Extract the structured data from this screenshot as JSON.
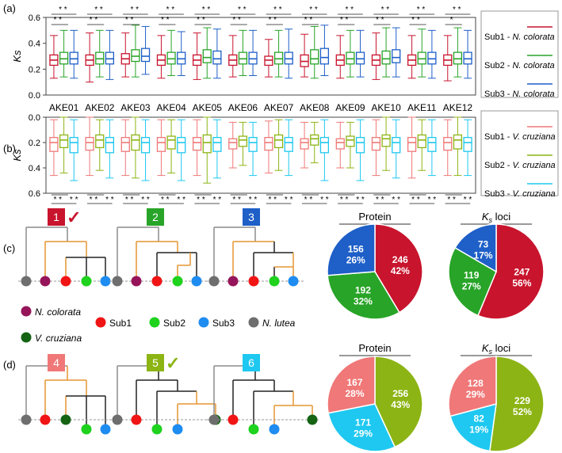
{
  "panel_labels": {
    "a": "(a)",
    "b": "(b)",
    "c": "(c)",
    "d": "(d)"
  },
  "colors": {
    "sub1_nc": "#c8142d",
    "sub2_nc": "#28a428",
    "sub3_nc": "#1e5fc8",
    "sub1_vc": "#f07878",
    "sub2_vc": "#8cb414",
    "sub3_vc": "#1ec8f0",
    "n_colorata": "#96145a",
    "v_cruziana": "#146414",
    "sub1": "#f01414",
    "sub2": "#1ed21e",
    "sub3": "#1e8cf0",
    "n_lutea": "#6e6e6e",
    "tree_orange": "#e69632",
    "tree_gray": "#8c8c8c",
    "tree_black": "#222222"
  },
  "chart_data": [
    {
      "type": "box",
      "panel": "(a)",
      "ylabel": "Ks",
      "ylim": [
        0,
        0.6
      ],
      "yticks": [
        "0.6",
        "0.4",
        "0.2",
        "0.0"
      ],
      "categories": [
        "AKE01",
        "AKE02",
        "AKE03",
        "AKE04",
        "AKE05",
        "AKE06",
        "AKE07",
        "AKE08",
        "AKE09",
        "AKE10",
        "AKE11",
        "AKE12"
      ],
      "series": [
        {
          "name": "Sub1 - N. colorata",
          "boxes": [
            {
              "low": 0.13,
              "q1": 0.23,
              "med": 0.27,
              "q3": 0.31,
              "high": 0.46
            },
            {
              "low": 0.1,
              "q1": 0.23,
              "med": 0.27,
              "q3": 0.31,
              "high": 0.48
            },
            {
              "low": 0.14,
              "q1": 0.24,
              "med": 0.28,
              "q3": 0.32,
              "high": 0.48
            },
            {
              "low": 0.13,
              "q1": 0.23,
              "med": 0.27,
              "q3": 0.31,
              "high": 0.46
            },
            {
              "low": 0.12,
              "q1": 0.23,
              "med": 0.27,
              "q3": 0.31,
              "high": 0.48
            },
            {
              "low": 0.14,
              "q1": 0.23,
              "med": 0.27,
              "q3": 0.31,
              "high": 0.46
            },
            {
              "low": 0.14,
              "q1": 0.23,
              "med": 0.27,
              "q3": 0.3,
              "high": 0.43
            },
            {
              "low": 0.14,
              "q1": 0.22,
              "med": 0.26,
              "q3": 0.31,
              "high": 0.47
            },
            {
              "low": 0.13,
              "q1": 0.23,
              "med": 0.27,
              "q3": 0.31,
              "high": 0.46
            },
            {
              "low": 0.12,
              "q1": 0.23,
              "med": 0.27,
              "q3": 0.31,
              "high": 0.48
            },
            {
              "low": 0.13,
              "q1": 0.23,
              "med": 0.27,
              "q3": 0.31,
              "high": 0.46
            },
            {
              "low": 0.11,
              "q1": 0.23,
              "med": 0.27,
              "q3": 0.31,
              "high": 0.46
            }
          ]
        },
        {
          "name": "Sub2 - N. colorata",
          "boxes": [
            {
              "low": 0.14,
              "q1": 0.24,
              "med": 0.28,
              "q3": 0.33,
              "high": 0.5
            },
            {
              "low": 0.14,
              "q1": 0.24,
              "med": 0.28,
              "q3": 0.33,
              "high": 0.5
            },
            {
              "low": 0.14,
              "q1": 0.26,
              "med": 0.3,
              "q3": 0.35,
              "high": 0.54
            },
            {
              "low": 0.15,
              "q1": 0.24,
              "med": 0.28,
              "q3": 0.33,
              "high": 0.5
            },
            {
              "low": 0.13,
              "q1": 0.25,
              "med": 0.29,
              "q3": 0.35,
              "high": 0.52
            },
            {
              "low": 0.15,
              "q1": 0.24,
              "med": 0.28,
              "q3": 0.33,
              "high": 0.5
            },
            {
              "low": 0.14,
              "q1": 0.24,
              "med": 0.28,
              "q3": 0.33,
              "high": 0.5
            },
            {
              "low": 0.13,
              "q1": 0.24,
              "med": 0.28,
              "q3": 0.35,
              "high": 0.53
            },
            {
              "low": 0.14,
              "q1": 0.24,
              "med": 0.28,
              "q3": 0.33,
              "high": 0.5
            },
            {
              "low": 0.14,
              "q1": 0.24,
              "med": 0.28,
              "q3": 0.34,
              "high": 0.52
            },
            {
              "low": 0.14,
              "q1": 0.24,
              "med": 0.28,
              "q3": 0.33,
              "high": 0.51
            },
            {
              "low": 0.14,
              "q1": 0.24,
              "med": 0.28,
              "q3": 0.33,
              "high": 0.52
            }
          ]
        },
        {
          "name": "Sub3 - N. colorata",
          "boxes": [
            {
              "low": 0.13,
              "q1": 0.24,
              "med": 0.28,
              "q3": 0.33,
              "high": 0.5
            },
            {
              "low": 0.12,
              "q1": 0.24,
              "med": 0.28,
              "q3": 0.33,
              "high": 0.5
            },
            {
              "low": 0.16,
              "q1": 0.26,
              "med": 0.3,
              "q3": 0.36,
              "high": 0.53
            },
            {
              "low": 0.15,
              "q1": 0.24,
              "med": 0.28,
              "q3": 0.33,
              "high": 0.49
            },
            {
              "low": 0.13,
              "q1": 0.24,
              "med": 0.28,
              "q3": 0.34,
              "high": 0.51
            },
            {
              "low": 0.15,
              "q1": 0.24,
              "med": 0.28,
              "q3": 0.33,
              "high": 0.5
            },
            {
              "low": 0.13,
              "q1": 0.24,
              "med": 0.28,
              "q3": 0.33,
              "high": 0.51
            },
            {
              "low": 0.15,
              "q1": 0.24,
              "med": 0.29,
              "q3": 0.36,
              "high": 0.54
            },
            {
              "low": 0.14,
              "q1": 0.24,
              "med": 0.28,
              "q3": 0.33,
              "high": 0.5
            },
            {
              "low": 0.14,
              "q1": 0.25,
              "med": 0.29,
              "q3": 0.35,
              "high": 0.52
            },
            {
              "low": 0.13,
              "q1": 0.24,
              "med": 0.28,
              "q3": 0.33,
              "high": 0.5
            },
            {
              "low": 0.13,
              "q1": 0.24,
              "med": 0.28,
              "q3": 0.33,
              "high": 0.5
            }
          ]
        }
      ],
      "legend": [
        {
          "label": "Sub1 - ",
          "species": "N. colorata",
          "color": "#c8142d"
        },
        {
          "label": "Sub2 - ",
          "species": "N. colorata",
          "color": "#28a428"
        },
        {
          "label": "Sub3 - ",
          "species": "N. colorata",
          "color": "#1e5fc8"
        }
      ],
      "significance": [
        {
          "top": "* *",
          "bottom": "* *"
        },
        {
          "top": "* *",
          "bottom": "* *"
        },
        {
          "top": "* *",
          "bottom": "* *"
        },
        {
          "top": "* *",
          "bottom": "* *"
        },
        {
          "top": "* *",
          "bottom": "* *"
        },
        {
          "top": "* *",
          "bottom": "* *"
        },
        {
          "top": "* *",
          "bottom": "* *"
        },
        {
          "top": "* *",
          "bottom": "* *"
        },
        {
          "top": "* *",
          "bottom": "* *"
        },
        {
          "top": "* *",
          "bottom": "* *"
        },
        {
          "top": "* *",
          "bottom": "* *"
        },
        {
          "top": "* *",
          "bottom": "*"
        }
      ]
    },
    {
      "type": "box",
      "panel": "(b)",
      "ylabel": "Ks",
      "ylim": [
        0,
        0.6
      ],
      "inverted": true,
      "yticks": [
        "0.0",
        "0.2",
        "0.4",
        "0.6"
      ],
      "series": [
        {
          "name": "Sub1 - V. cruziana",
          "boxes": [
            {
              "low": 0.02,
              "q1": 0.16,
              "med": 0.2,
              "q3": 0.27,
              "high": 0.46
            },
            {
              "low": 0.0,
              "q1": 0.16,
              "med": 0.2,
              "q3": 0.26,
              "high": 0.46
            },
            {
              "low": 0.02,
              "q1": 0.16,
              "med": 0.2,
              "q3": 0.27,
              "high": 0.46
            },
            {
              "low": 0.02,
              "q1": 0.16,
              "med": 0.2,
              "q3": 0.27,
              "high": 0.46
            },
            {
              "low": 0.02,
              "q1": 0.16,
              "med": 0.2,
              "q3": 0.26,
              "high": 0.46
            },
            {
              "low": 0.04,
              "q1": 0.17,
              "med": 0.2,
              "q3": 0.25,
              "high": 0.4
            },
            {
              "low": 0.03,
              "q1": 0.16,
              "med": 0.2,
              "q3": 0.26,
              "high": 0.44
            },
            {
              "low": 0.04,
              "q1": 0.17,
              "med": 0.2,
              "q3": 0.25,
              "high": 0.4
            },
            {
              "low": 0.04,
              "q1": 0.17,
              "med": 0.2,
              "q3": 0.25,
              "high": 0.4
            },
            {
              "low": 0.02,
              "q1": 0.16,
              "med": 0.2,
              "q3": 0.26,
              "high": 0.46
            },
            {
              "low": 0.0,
              "q1": 0.16,
              "med": 0.2,
              "q3": 0.27,
              "high": 0.48
            },
            {
              "low": 0.02,
              "q1": 0.16,
              "med": 0.2,
              "q3": 0.26,
              "high": 0.46
            }
          ]
        },
        {
          "name": "Sub2 - V. cruziana",
          "boxes": [
            {
              "low": 0.0,
              "q1": 0.14,
              "med": 0.18,
              "q3": 0.24,
              "high": 0.44
            },
            {
              "low": 0.02,
              "q1": 0.14,
              "med": 0.18,
              "q3": 0.24,
              "high": 0.42
            },
            {
              "low": 0.0,
              "q1": 0.14,
              "med": 0.18,
              "q3": 0.26,
              "high": 0.48
            },
            {
              "low": 0.02,
              "q1": 0.15,
              "med": 0.18,
              "q3": 0.25,
              "high": 0.44
            },
            {
              "low": 0.0,
              "q1": 0.14,
              "med": 0.2,
              "q3": 0.28,
              "high": 0.52
            },
            {
              "low": 0.04,
              "q1": 0.15,
              "med": 0.18,
              "q3": 0.23,
              "high": 0.38
            },
            {
              "low": 0.02,
              "q1": 0.14,
              "med": 0.18,
              "q3": 0.24,
              "high": 0.42
            },
            {
              "low": 0.04,
              "q1": 0.14,
              "med": 0.17,
              "q3": 0.22,
              "high": 0.36
            },
            {
              "low": 0.04,
              "q1": 0.15,
              "med": 0.18,
              "q3": 0.23,
              "high": 0.4
            },
            {
              "low": 0.0,
              "q1": 0.14,
              "med": 0.17,
              "q3": 0.23,
              "high": 0.42
            },
            {
              "low": 0.02,
              "q1": 0.14,
              "med": 0.18,
              "q3": 0.24,
              "high": 0.42
            },
            {
              "low": 0.0,
              "q1": 0.14,
              "med": 0.18,
              "q3": 0.25,
              "high": 0.46
            }
          ]
        },
        {
          "name": "Sub3 - V. cruziana",
          "boxes": [
            {
              "low": 0.02,
              "q1": 0.16,
              "med": 0.2,
              "q3": 0.28,
              "high": 0.5
            },
            {
              "low": 0.02,
              "q1": 0.16,
              "med": 0.2,
              "q3": 0.28,
              "high": 0.48
            },
            {
              "low": 0.02,
              "q1": 0.16,
              "med": 0.2,
              "q3": 0.28,
              "high": 0.5
            },
            {
              "low": 0.02,
              "q1": 0.16,
              "med": 0.2,
              "q3": 0.28,
              "high": 0.5
            },
            {
              "low": 0.02,
              "q1": 0.16,
              "med": 0.2,
              "q3": 0.27,
              "high": 0.48
            },
            {
              "low": 0.04,
              "q1": 0.16,
              "med": 0.2,
              "q3": 0.27,
              "high": 0.46
            },
            {
              "low": 0.02,
              "q1": 0.16,
              "med": 0.2,
              "q3": 0.27,
              "high": 0.46
            },
            {
              "low": 0.02,
              "q1": 0.16,
              "med": 0.2,
              "q3": 0.28,
              "high": 0.5
            },
            {
              "low": 0.02,
              "q1": 0.16,
              "med": 0.2,
              "q3": 0.28,
              "high": 0.5
            },
            {
              "low": 0.02,
              "q1": 0.16,
              "med": 0.2,
              "q3": 0.28,
              "high": 0.48
            },
            {
              "low": 0.02,
              "q1": 0.16,
              "med": 0.2,
              "q3": 0.27,
              "high": 0.46
            },
            {
              "low": 0.02,
              "q1": 0.16,
              "med": 0.2,
              "q3": 0.27,
              "high": 0.46
            }
          ]
        }
      ],
      "legend": [
        {
          "label": "Sub1 - ",
          "species": "V. cruziana",
          "color": "#f07878"
        },
        {
          "label": "Sub2 - ",
          "species": "V. cruziana",
          "color": "#8cb414"
        },
        {
          "label": "Sub3 - ",
          "species": "V. cruziana",
          "color": "#1ec8f0"
        }
      ],
      "significance": [
        {
          "top": "* *",
          "bottom": "* *"
        },
        {
          "top": "* *",
          "bottom": "* *"
        },
        {
          "top": "* *",
          "bottom": "* *"
        },
        {
          "top": "* *",
          "bottom": "* *"
        },
        {
          "top": "* *",
          "bottom": "* *"
        },
        {
          "top": "* *",
          "bottom": "* *"
        },
        {
          "top": "* *",
          "bottom": "* *"
        },
        {
          "top": "* *",
          "bottom": "* *"
        },
        {
          "top": "* *",
          "bottom": "* *"
        },
        {
          "top": "* *",
          "bottom": "* *"
        },
        {
          "top": "* *",
          "bottom": "* *"
        },
        {
          "top": "* *",
          "bottom": "* *"
        }
      ]
    },
    {
      "type": "pie",
      "panel": "(c)",
      "title": "Protein",
      "slices": [
        {
          "value": 246,
          "pct": "42%",
          "color": "#c8142d"
        },
        {
          "value": 192,
          "pct": "32%",
          "color": "#28a428"
        },
        {
          "value": 156,
          "pct": "26%",
          "color": "#1e5fc8"
        }
      ]
    },
    {
      "type": "pie",
      "panel": "(c)",
      "title": "Ks loci",
      "title_sub": "s",
      "slices": [
        {
          "value": 247,
          "pct": "56%",
          "color": "#c8142d"
        },
        {
          "value": 119,
          "pct": "27%",
          "color": "#28a428"
        },
        {
          "value": 73,
          "pct": "17%",
          "color": "#1e5fc8"
        }
      ]
    },
    {
      "type": "pie",
      "panel": "(d)",
      "title": "Protein",
      "slices": [
        {
          "value": 256,
          "pct": "43%",
          "color": "#8cb414"
        },
        {
          "value": 171,
          "pct": "29%",
          "color": "#1ec8f0"
        },
        {
          "value": 167,
          "pct": "28%",
          "color": "#f07878"
        }
      ]
    },
    {
      "type": "pie",
      "panel": "(d)",
      "title": "Ks loci",
      "title_sub": "s",
      "slices": [
        {
          "value": 229,
          "pct": "52%",
          "color": "#8cb414"
        },
        {
          "value": 82,
          "pct": "19%",
          "color": "#1ec8f0"
        },
        {
          "value": 128,
          "pct": "29%",
          "color": "#f07878"
        }
      ]
    }
  ],
  "trees_c": [
    {
      "number": "1",
      "color": "#c8142d",
      "check": "✓"
    },
    {
      "number": "2",
      "color": "#28a428"
    },
    {
      "number": "3",
      "color": "#1e5fc8"
    }
  ],
  "trees_d": [
    {
      "number": "4",
      "color": "#f07878"
    },
    {
      "number": "5",
      "color": "#8cb414",
      "check": "✓"
    },
    {
      "number": "6",
      "color": "#1ec8f0"
    }
  ],
  "species_legend": [
    {
      "label": "N. colorata",
      "italic": true,
      "color": "#96145a"
    },
    {
      "label": "Sub1",
      "italic": false,
      "color": "#f01414"
    },
    {
      "label": "Sub2",
      "italic": false,
      "color": "#1ed21e"
    },
    {
      "label": "Sub3",
      "italic": false,
      "color": "#1e8cf0"
    },
    {
      "label": "N. lutea",
      "italic": true,
      "color": "#6e6e6e"
    },
    {
      "label": "V. cruziana",
      "italic": true,
      "color": "#146414"
    }
  ]
}
